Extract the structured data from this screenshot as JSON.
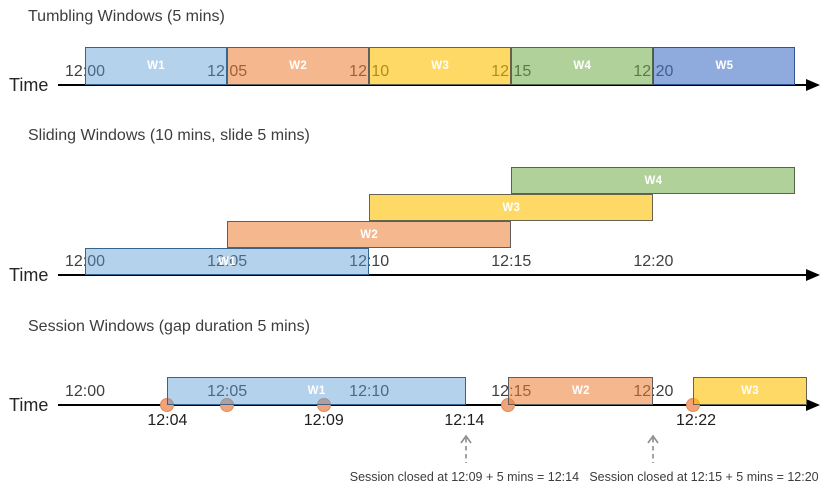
{
  "diagram": {
    "axis_label": "Time",
    "palette": {
      "blue": {
        "fill": "rgba(91,155,213,0.45)",
        "border": "#33658D"
      },
      "orange": {
        "fill": "rgba(237,125,49,0.55)",
        "border": "#5E5E5E"
      },
      "yellow": {
        "fill": "rgba(255,192,0,0.60)",
        "border": "#66644E"
      },
      "green": {
        "fill": "rgba(112,173,71,0.55)",
        "border": "#53674F"
      },
      "indigo": {
        "fill": "rgba(68,114,196,0.60)",
        "border": "#2F5597"
      }
    },
    "colors": {
      "axis": "#000000",
      "tick_text": "#404040",
      "event_label_text": "#1f1f1f",
      "callout_text": "#3d3d3d",
      "callout_arrow": "#8C8C8C",
      "event_dot_fill": "#F2A379",
      "event_dot_border": "#E08A57"
    },
    "sections": {
      "tumbling": {
        "title": "Tumbling Windows (5 mins)",
        "ticks": [
          {
            "label": "12:00",
            "t": 0
          },
          {
            "label": "12:05",
            "t": 5
          },
          {
            "label": "12:10",
            "t": 10
          },
          {
            "label": "12:15",
            "t": 15
          },
          {
            "label": "12:20",
            "t": 20
          }
        ],
        "windows": [
          {
            "label": "W1",
            "start": 0,
            "end": 5,
            "lane": 0,
            "color": "blue"
          },
          {
            "label": "W2",
            "start": 5,
            "end": 10,
            "lane": 0,
            "color": "orange"
          },
          {
            "label": "W3",
            "start": 10,
            "end": 15,
            "lane": 0,
            "color": "yellow"
          },
          {
            "label": "W4",
            "start": 15,
            "end": 20,
            "lane": 0,
            "color": "green"
          },
          {
            "label": "W5",
            "start": 20,
            "end": 25,
            "lane": 0,
            "color": "indigo"
          }
        ]
      },
      "sliding": {
        "title": "Sliding Windows (10 mins, slide 5 mins)",
        "ticks": [
          {
            "label": "12:00",
            "t": 0
          },
          {
            "label": "12:05",
            "t": 5
          },
          {
            "label": "12:10",
            "t": 10
          },
          {
            "label": "12:15",
            "t": 15
          },
          {
            "label": "12:20",
            "t": 20
          }
        ],
        "windows": [
          {
            "label": "W1",
            "start": 0,
            "end": 10,
            "lane": 0,
            "color": "blue"
          },
          {
            "label": "W2",
            "start": 5,
            "end": 15,
            "lane": 1,
            "color": "orange"
          },
          {
            "label": "W3",
            "start": 10,
            "end": 20,
            "lane": 2,
            "color": "yellow"
          },
          {
            "label": "W4",
            "start": 15,
            "end": 25,
            "lane": 3,
            "color": "green"
          }
        ]
      },
      "session": {
        "title": "Session Windows (gap duration 5 mins)",
        "ticks": [
          {
            "label": "12:00",
            "t": 0
          },
          {
            "label": "12:05",
            "t": 5
          },
          {
            "label": "12:10",
            "t": 10
          },
          {
            "label": "12:15",
            "t": 15
          },
          {
            "label": "12:20",
            "t": 20
          }
        ],
        "windows": [
          {
            "label": "W1",
            "start": 2.9,
            "end": 13.4,
            "lane": 0,
            "color": "blue"
          },
          {
            "label": "W2",
            "start": 14.9,
            "end": 20.0,
            "lane": 0,
            "color": "orange"
          },
          {
            "label": "W3",
            "start": 21.4,
            "end": 25.4,
            "lane": 0,
            "color": "yellow"
          }
        ],
        "events": [
          {
            "t": 2.9
          },
          {
            "t": 5.0
          },
          {
            "t": 8.4
          },
          {
            "t": 14.9
          },
          {
            "t": 21.4
          }
        ],
        "event_labels": [
          {
            "label": "12:04",
            "t": 2.9
          },
          {
            "label": "12:09",
            "t": 8.4
          },
          {
            "label": "12:14",
            "t": 13.35
          },
          {
            "label": "12:22",
            "t": 21.5
          }
        ],
        "callouts": [
          {
            "text": "Session closed at 12:09 + 5 mins = 12:14",
            "arrow_t": 13.4,
            "text_t": 13.35
          },
          {
            "text": "Session closed at 12:15 + 5 mins = 12:20",
            "arrow_t": 20.0,
            "text_t": 21.78
          }
        ]
      }
    }
  }
}
